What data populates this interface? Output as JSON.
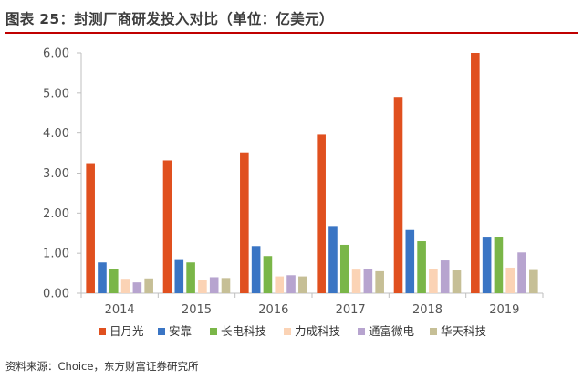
{
  "header": {
    "title": "图表 25：封测厂商研发投入对比（单位：亿美元）"
  },
  "footer": {
    "source": "资料来源：Choice，东方财富证券研究所"
  },
  "chart_data": {
    "type": "bar",
    "title": "图表 25：封测厂商研发投入对比（单位：亿美元）",
    "xlabel": "",
    "ylabel": "",
    "categories": [
      "2014",
      "2015",
      "2016",
      "2017",
      "2018",
      "2019"
    ],
    "ylim": [
      0,
      6
    ],
    "yticks": [
      "0.00",
      "1.00",
      "2.00",
      "3.00",
      "4.00",
      "5.00",
      "6.00"
    ],
    "grid": false,
    "legend_position": "bottom",
    "series": [
      {
        "name": "日月光",
        "color": "#e0501f",
        "values": [
          3.25,
          3.32,
          3.52,
          3.96,
          4.9,
          6.0
        ]
      },
      {
        "name": "安靠",
        "color": "#3a75c4",
        "values": [
          0.77,
          0.83,
          1.18,
          1.68,
          1.58,
          1.39
        ]
      },
      {
        "name": "长电科技",
        "color": "#7ab648",
        "values": [
          0.61,
          0.77,
          0.93,
          1.21,
          1.3,
          1.4
        ]
      },
      {
        "name": "力成科技",
        "color": "#fbd3b5",
        "values": [
          0.36,
          0.34,
          0.42,
          0.59,
          0.61,
          0.64
        ]
      },
      {
        "name": "通富微电",
        "color": "#b7a4cf",
        "values": [
          0.27,
          0.4,
          0.45,
          0.6,
          0.82,
          1.02
        ]
      },
      {
        "name": "华天科技",
        "color": "#c6bf96",
        "values": [
          0.37,
          0.38,
          0.42,
          0.55,
          0.57,
          0.58
        ]
      }
    ]
  }
}
